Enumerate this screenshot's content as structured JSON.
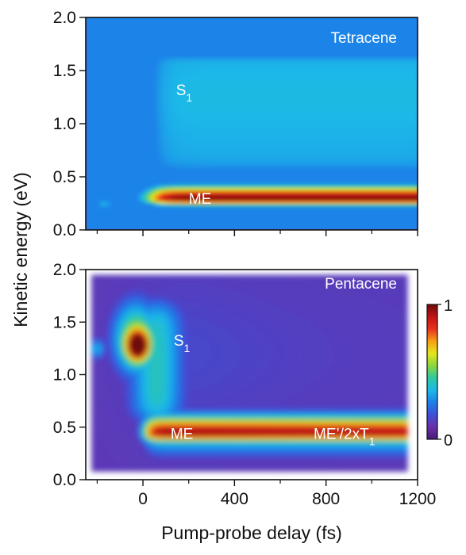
{
  "chart_data": [
    {
      "type": "heatmap",
      "panel": "top",
      "panel_label": "Tetracene",
      "xlim": [
        -250,
        1200
      ],
      "ylim": [
        0.0,
        2.0
      ],
      "y_ticks": [
        "0.0",
        "0.5",
        "1.0",
        "1.5",
        "2.0"
      ],
      "y_tick_values": [
        0.0,
        0.5,
        1.0,
        1.5,
        2.0
      ],
      "annotations": [
        {
          "text": "S",
          "sub": "1",
          "x": 180,
          "y": 1.32
        },
        {
          "text": "ME",
          "sub": "",
          "x": 250,
          "y": 0.3
        }
      ]
    },
    {
      "type": "heatmap",
      "panel": "bottom",
      "panel_label": "Pentacene",
      "xlim": [
        -250,
        1200
      ],
      "ylim": [
        0.0,
        2.0
      ],
      "y_ticks": [
        "0.0",
        "0.5",
        "1.0",
        "1.5",
        "2.0"
      ],
      "y_tick_values": [
        0.0,
        0.5,
        1.0,
        1.5,
        2.0
      ],
      "x_ticks": [
        "0",
        "400",
        "800",
        "1200"
      ],
      "x_tick_values": [
        0,
        400,
        800,
        1200
      ],
      "annotations": [
        {
          "text": "S",
          "sub": "1",
          "x": 170,
          "y": 1.33
        },
        {
          "text": "ME",
          "sub": "",
          "x": 170,
          "y": 0.44
        },
        {
          "text": "ME’/2xT",
          "sub": "1",
          "x": 880,
          "y": 0.44
        }
      ]
    }
  ],
  "axes": {
    "xlabel": "Pump-probe delay (fs)",
    "ylabel": "Kinetic energy (eV)"
  },
  "colorbar": {
    "min_label": "0",
    "max_label": "1",
    "colormap": [
      "#4a1a7a",
      "#6a2fa8",
      "#3c4fd8",
      "#1e7fe8",
      "#1cb8e8",
      "#2ec9a0",
      "#8ad63c",
      "#e6e61e",
      "#f5a014",
      "#e8321e",
      "#c01414",
      "#6e0a0a"
    ]
  },
  "colors": {
    "background_low": "#7b52b8",
    "tetracene_background": "#6c55b6",
    "pentacene_background": "#5e2fa0"
  }
}
